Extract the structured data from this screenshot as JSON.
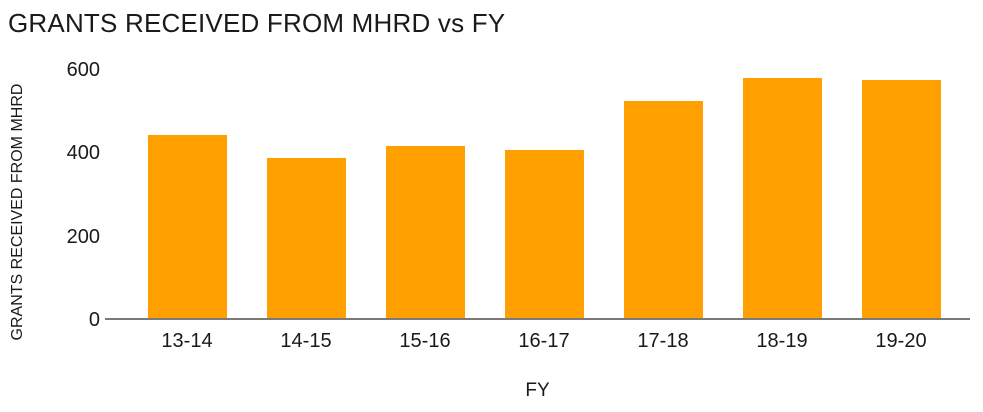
{
  "chart_data": {
    "type": "bar",
    "title": "GRANTS RECEIVED FROM MHRD vs FY",
    "xlabel": "FY",
    "ylabel": "GRANTS RECEIVED FROM MHRD",
    "categories": [
      "13-14",
      "14-15",
      "15-16",
      "16-17",
      "17-18",
      "18-19",
      "19-20"
    ],
    "values": [
      445,
      390,
      418,
      408,
      525,
      580,
      575
    ],
    "ylim": [
      0,
      600
    ],
    "yticks": [
      0,
      200,
      400,
      600
    ],
    "grid": false,
    "legend": "none",
    "bar_color": "#ffa000",
    "axis_line_color": "#7a7a7a",
    "text_color": "#1a1a1a"
  }
}
